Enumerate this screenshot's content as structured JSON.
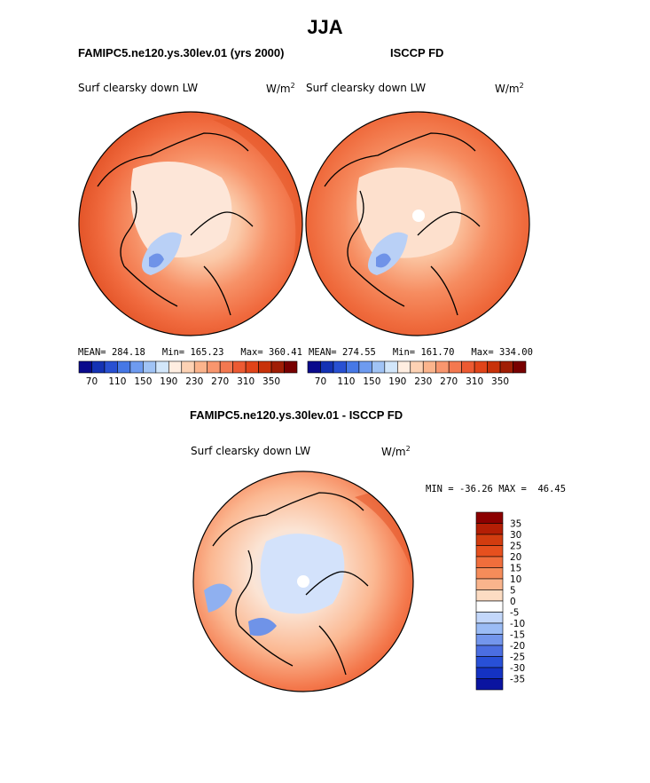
{
  "figure": {
    "title": "JJA"
  },
  "panels": [
    {
      "id": "model",
      "header": "FAMIPC5.ne120.ys.30lev.01 (yrs 2000)",
      "variable": "Surf clearsky down LW",
      "units": "W/m",
      "units_sup": "2",
      "stats": {
        "mean_label": "MEAN=",
        "mean": "284.18",
        "min_label": "Min=",
        "min": "165.23",
        "max_label": "Max=",
        "max": "360.41"
      }
    },
    {
      "id": "obs",
      "header": "ISCCP FD",
      "variable": "Surf clearsky down LW",
      "units": "W/m",
      "units_sup": "2",
      "stats": {
        "mean_label": "MEAN=",
        "mean": "274.55",
        "min_label": "Min=",
        "min": "161.70",
        "max_label": "Max=",
        "max": "334.00"
      }
    },
    {
      "id": "diff",
      "header": "FAMIPC5.ne120.ys.30lev.01 - ISCCP FD",
      "variable": "Surf clearsky down LW",
      "units": "W/m",
      "units_sup": "2",
      "stats": {
        "min_label": "MIN =",
        "min": "-36.26",
        "max_label": "MAX =",
        "max": "46.45"
      }
    }
  ],
  "chart_data": [
    {
      "type": "heatmap",
      "projection": "north polar stereographic",
      "title": "Surf clearsky down LW",
      "units": "W/m2",
      "colorbar": {
        "orientation": "horizontal",
        "colors": [
          "#0a0a8c",
          "#1432b4",
          "#2850d2",
          "#4678e6",
          "#6e9bf0",
          "#a0c3f5",
          "#d2e6fa",
          "#ffeee1",
          "#fdd2b4",
          "#fbb48c",
          "#f8966e",
          "#f37850",
          "#ec5a32",
          "#e14419",
          "#c8320a",
          "#a01e05",
          "#780000"
        ],
        "tick_labels": [
          "70",
          "110",
          "150",
          "190",
          "230",
          "270",
          "310",
          "350"
        ]
      },
      "mean": 284.18,
      "min": 165.23,
      "max": 360.41
    },
    {
      "type": "heatmap",
      "projection": "north polar stereographic",
      "title": "Surf clearsky down LW",
      "units": "W/m2",
      "colorbar": {
        "orientation": "horizontal",
        "colors": [
          "#0a0a8c",
          "#1432b4",
          "#2850d2",
          "#4678e6",
          "#6e9bf0",
          "#a0c3f5",
          "#d2e6fa",
          "#ffeee1",
          "#fdd2b4",
          "#fbb48c",
          "#f8966e",
          "#f37850",
          "#ec5a32",
          "#e14419",
          "#c8320a",
          "#a01e05",
          "#780000"
        ],
        "tick_labels": [
          "70",
          "110",
          "150",
          "190",
          "230",
          "270",
          "310",
          "350"
        ]
      },
      "mean": 274.55,
      "min": 161.7,
      "max": 334.0
    },
    {
      "type": "heatmap",
      "projection": "north polar stereographic",
      "title": "Surf clearsky down LW",
      "units": "W/m2",
      "colorbar": {
        "orientation": "vertical",
        "colors": [
          "#8c0000",
          "#b41e05",
          "#d23c0f",
          "#e6501e",
          "#f06e3c",
          "#f58c5a",
          "#f9b48c",
          "#fcdcc3",
          "#ffffff",
          "#c3d7fa",
          "#9bbcf5",
          "#7396ec",
          "#4b6ee1",
          "#2850d7",
          "#1432c3",
          "#0a14a0"
        ],
        "tick_labels": [
          "35",
          "30",
          "25",
          "20",
          "15",
          "10",
          "5",
          "0",
          "-5",
          "-10",
          "-15",
          "-20",
          "-25",
          "-30",
          "-35"
        ]
      },
      "min": -36.26,
      "max": 46.45
    }
  ]
}
